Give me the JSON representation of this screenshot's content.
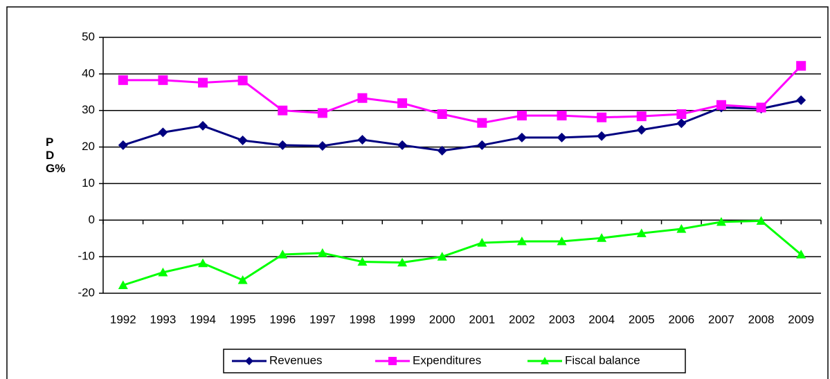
{
  "chart_data": {
    "type": "line",
    "y_label": "PDG%",
    "categories": [
      "1992",
      "1993",
      "1994",
      "1995",
      "1996",
      "1997",
      "1998",
      "1999",
      "2000",
      "2001",
      "2002",
      "2003",
      "2004",
      "2005",
      "2006",
      "2007",
      "2008",
      "2009"
    ],
    "series": [
      {
        "name": "Revenues",
        "color": "#000080",
        "marker": "diamond",
        "values": [
          20.5,
          24,
          25.8,
          21.8,
          20.5,
          20.3,
          22,
          20.5,
          19,
          20.5,
          22.6,
          22.6,
          23,
          24.7,
          26.5,
          30.8,
          30.5,
          32.8
        ]
      },
      {
        "name": "Expenditures",
        "color": "#ff00ff",
        "marker": "square",
        "values": [
          38.3,
          38.3,
          37.6,
          38.2,
          30,
          29.3,
          33.4,
          32,
          29,
          26.6,
          28.6,
          28.6,
          28.1,
          28.4,
          29,
          31.5,
          30.8,
          42.2
        ]
      },
      {
        "name": "Fiscal balance",
        "color": "#00ff00",
        "marker": "triangle",
        "values": [
          -17.8,
          -14.3,
          -11.8,
          -16.4,
          -9.4,
          -9,
          -11.4,
          -11.6,
          -10,
          -6.2,
          -5.8,
          -5.8,
          -4.9,
          -3.6,
          -2.4,
          -0.5,
          -0.2,
          -9.4
        ]
      }
    ],
    "ylim": [
      -20,
      50
    ],
    "yticks": [
      -20,
      -10,
      0,
      10,
      20,
      30,
      40,
      50
    ],
    "grid": true,
    "legend": "bottom"
  }
}
